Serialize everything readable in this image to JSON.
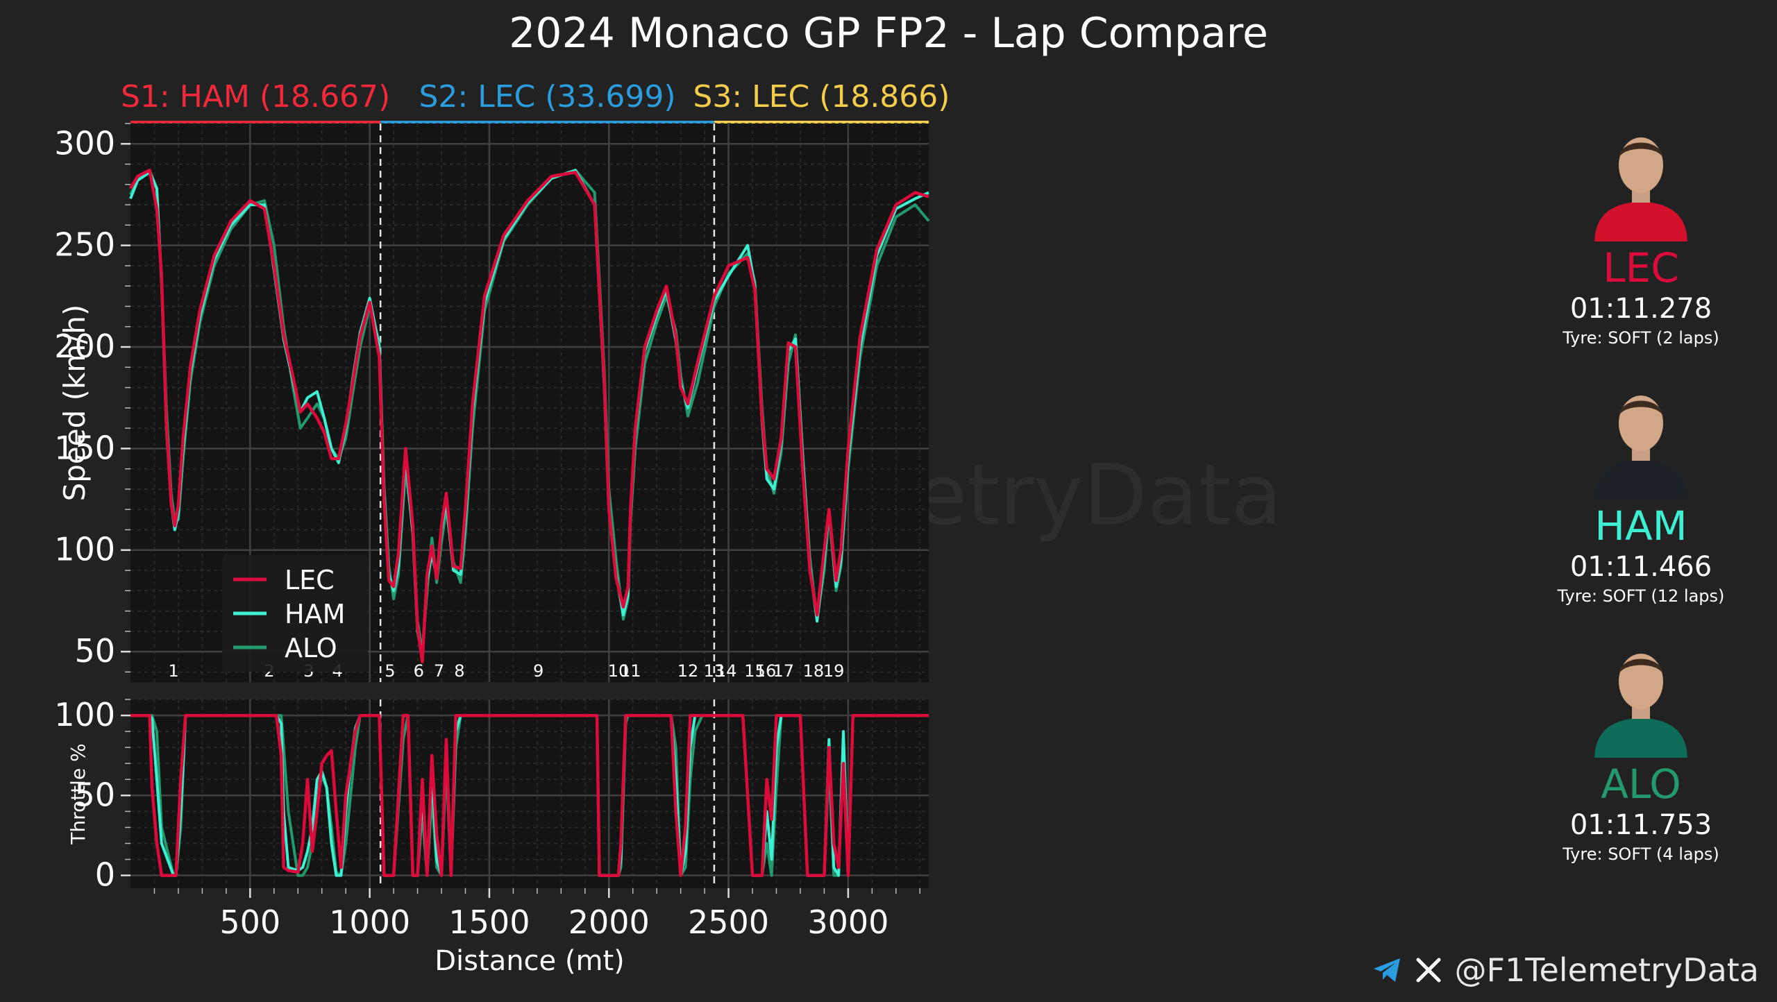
{
  "title": "2024 Monaco GP FP2 - Lap Compare",
  "watermark": "@F1TelemetryData",
  "sectors": [
    {
      "label": "S1: HAM (18.667)",
      "color": "#f2293a",
      "start": 0,
      "end": 1045
    },
    {
      "label": "S2: LEC (33.699)",
      "color": "#2a9ddf",
      "start": 1045,
      "end": 2440
    },
    {
      "label": "S3: LEC (18.866)",
      "color": "#f5cd4c",
      "start": 2440,
      "end": 3337
    }
  ],
  "drivers": [
    {
      "code": "LEC",
      "color": "#dc0b3c",
      "lap_time": "01:11.278",
      "tyre": "Tyre: SOFT (2 laps)",
      "avatar_icon": "driver-avatar-ferrari",
      "suit_color": "#d2102b"
    },
    {
      "code": "HAM",
      "color": "#3ef0d2",
      "lap_time": "01:11.466",
      "tyre": "Tyre: SOFT (12 laps)",
      "avatar_icon": "driver-avatar-mercedes",
      "suit_color": "#1c2227"
    },
    {
      "code": "ALO",
      "color": "#239a6e",
      "lap_time": "01:11.753",
      "tyre": "Tyre: SOFT (4 laps)",
      "avatar_icon": "driver-avatar-aston-martin",
      "suit_color": "#0e6b57"
    }
  ],
  "footer": {
    "handle": "@F1TelemetryData",
    "icons": [
      "telegram-icon",
      "x-icon"
    ]
  },
  "chart_data": [
    {
      "type": "line",
      "ylabel": "Speed (km/h)",
      "xlim": [
        0,
        3337
      ],
      "ylim": [
        35,
        310
      ],
      "yticks": [
        50,
        100,
        150,
        200,
        250,
        300
      ],
      "grid": true,
      "legend": "lower-left",
      "corners": [
        {
          "label": "1",
          "x": 180
        },
        {
          "label": "2",
          "x": 580
        },
        {
          "label": "3",
          "x": 745
        },
        {
          "label": "4",
          "x": 865
        },
        {
          "label": "5",
          "x": 1085
        },
        {
          "label": "6",
          "x": 1205
        },
        {
          "label": "7",
          "x": 1290
        },
        {
          "label": "8",
          "x": 1375
        },
        {
          "label": "9",
          "x": 1705
        },
        {
          "label": "10",
          "x": 2040
        },
        {
          "label": "11",
          "x": 2090
        },
        {
          "label": "12",
          "x": 2330
        },
        {
          "label": "13",
          "x": 2440
        },
        {
          "label": "14",
          "x": 2490
        },
        {
          "label": "15",
          "x": 2610
        },
        {
          "label": "16",
          "x": 2655
        },
        {
          "label": "17",
          "x": 2730
        },
        {
          "label": "18",
          "x": 2855
        },
        {
          "label": "19",
          "x": 2940
        }
      ],
      "x": [
        0,
        30,
        80,
        110,
        130,
        150,
        170,
        185,
        200,
        220,
        250,
        290,
        350,
        420,
        500,
        560,
        600,
        640,
        680,
        710,
        740,
        780,
        810,
        840,
        870,
        900,
        930,
        960,
        1000,
        1040,
        1060,
        1080,
        1100,
        1120,
        1150,
        1180,
        1200,
        1220,
        1240,
        1260,
        1280,
        1300,
        1320,
        1350,
        1380,
        1400,
        1430,
        1480,
        1560,
        1660,
        1760,
        1860,
        1940,
        1980,
        2000,
        2030,
        2060,
        2080,
        2090,
        2110,
        2150,
        2200,
        2240,
        2280,
        2300,
        2330,
        2370,
        2440,
        2500,
        2580,
        2610,
        2640,
        2660,
        2690,
        2720,
        2750,
        2780,
        2810,
        2840,
        2870,
        2900,
        2920,
        2950,
        2970,
        3000,
        3050,
        3120,
        3200,
        3280,
        3337
      ],
      "series": [
        {
          "name": "LEC",
          "color": "#dc0b3c",
          "values": [
            278,
            284,
            287,
            268,
            235,
            162,
            123,
            112,
            122,
            155,
            190,
            218,
            245,
            262,
            272,
            268,
            240,
            206,
            185,
            168,
            172,
            165,
            158,
            145,
            145,
            162,
            183,
            205,
            222,
            195,
            125,
            85,
            82,
            98,
            150,
            112,
            62,
            45,
            88,
            102,
            86,
            112,
            128,
            92,
            91,
            120,
            172,
            225,
            255,
            272,
            284,
            286,
            270,
            185,
            120,
            86,
            72,
            82,
            120,
            160,
            200,
            218,
            230,
            205,
            180,
            172,
            192,
            225,
            240,
            244,
            228,
            165,
            140,
            135,
            155,
            202,
            200,
            140,
            90,
            68,
            100,
            120,
            85,
            100,
            150,
            205,
            248,
            270,
            276,
            274
          ]
        },
        {
          "name": "HAM",
          "color": "#3ef0d2",
          "values": [
            273,
            282,
            286,
            278,
            232,
            160,
            123,
            110,
            118,
            150,
            187,
            215,
            243,
            260,
            270,
            270,
            238,
            204,
            183,
            168,
            175,
            178,
            165,
            150,
            143,
            160,
            185,
            207,
            224,
            200,
            128,
            88,
            80,
            92,
            146,
            108,
            60,
            48,
            85,
            98,
            87,
            110,
            124,
            90,
            88,
            115,
            168,
            222,
            253,
            271,
            283,
            287,
            270,
            182,
            120,
            88,
            68,
            78,
            120,
            158,
            198,
            216,
            228,
            203,
            182,
            170,
            190,
            223,
            235,
            250,
            230,
            163,
            135,
            130,
            153,
            198,
            204,
            145,
            92,
            65,
            96,
            120,
            82,
            95,
            145,
            200,
            245,
            268,
            273,
            276
          ]
        },
        {
          "name": "ALO",
          "color": "#239a6e",
          "values": [
            275,
            283,
            287,
            278,
            232,
            170,
            128,
            114,
            115,
            145,
            183,
            212,
            240,
            258,
            270,
            272,
            250,
            210,
            180,
            160,
            165,
            172,
            165,
            150,
            145,
            155,
            178,
            200,
            220,
            202,
            132,
            92,
            76,
            88,
            140,
            110,
            65,
            50,
            80,
            106,
            84,
            104,
            120,
            94,
            84,
            108,
            160,
            218,
            252,
            270,
            283,
            287,
            276,
            190,
            130,
            95,
            66,
            76,
            114,
            150,
            192,
            212,
            225,
            208,
            186,
            166,
            182,
            220,
            236,
            246,
            232,
            170,
            140,
            128,
            148,
            192,
            206,
            148,
            96,
            66,
            90,
            118,
            80,
            92,
            140,
            195,
            240,
            264,
            270,
            262
          ]
        }
      ]
    },
    {
      "type": "line",
      "ylabel": "Throttle %",
      "xlim": [
        0,
        3337
      ],
      "ylim": [
        -8,
        110
      ],
      "yticks": [
        0,
        50,
        100
      ],
      "xlabel": "Distance (mt)",
      "xticks": [
        500,
        1000,
        1500,
        2000,
        2500,
        3000
      ],
      "grid": true,
      "x": [
        0,
        80,
        90,
        110,
        130,
        180,
        190,
        210,
        230,
        610,
        630,
        640,
        660,
        700,
        720,
        740,
        760,
        780,
        800,
        820,
        840,
        860,
        880,
        900,
        920,
        940,
        960,
        1000,
        1040,
        1060,
        1100,
        1140,
        1160,
        1180,
        1200,
        1220,
        1240,
        1260,
        1280,
        1300,
        1320,
        1340,
        1360,
        1380,
        1420,
        1440,
        1950,
        1960,
        1980,
        2040,
        2050,
        2070,
        2080,
        2120,
        2260,
        2280,
        2300,
        2320,
        2340,
        2360,
        2390,
        2440,
        2560,
        2600,
        2640,
        2660,
        2680,
        2700,
        2720,
        2740,
        2760,
        2800,
        2830,
        2870,
        2900,
        2920,
        2940,
        2960,
        2980,
        3000,
        3020,
        3040,
        3337
      ],
      "series": [
        {
          "name": "LEC",
          "color": "#dc0b3c",
          "values": [
            100,
            100,
            55,
            20,
            0,
            0,
            0,
            60,
            100,
            100,
            75,
            5,
            3,
            2,
            20,
            60,
            15,
            40,
            70,
            75,
            78,
            40,
            5,
            50,
            70,
            90,
            100,
            100,
            100,
            0,
            0,
            100,
            100,
            0,
            0,
            60,
            0,
            75,
            25,
            0,
            85,
            0,
            100,
            100,
            100,
            100,
            100,
            0,
            0,
            0,
            20,
            100,
            100,
            100,
            100,
            40,
            0,
            30,
            100,
            100,
            100,
            100,
            100,
            0,
            0,
            60,
            35,
            100,
            100,
            100,
            100,
            100,
            0,
            0,
            0,
            80,
            20,
            5,
            70,
            0,
            100,
            100,
            100
          ]
        },
        {
          "name": "HAM",
          "color": "#3ef0d2",
          "values": [
            100,
            100,
            98,
            60,
            20,
            0,
            0,
            40,
            100,
            100,
            95,
            40,
            5,
            3,
            5,
            15,
            30,
            60,
            65,
            55,
            20,
            0,
            0,
            40,
            70,
            92,
            100,
            100,
            100,
            0,
            0,
            100,
            100,
            0,
            0,
            50,
            0,
            65,
            10,
            0,
            80,
            0,
            90,
            100,
            100,
            100,
            100,
            0,
            0,
            0,
            10,
            100,
            100,
            100,
            100,
            60,
            0,
            15,
            80,
            100,
            100,
            100,
            100,
            0,
            0,
            40,
            10,
            80,
            100,
            100,
            100,
            100,
            0,
            0,
            0,
            85,
            5,
            0,
            90,
            0,
            100,
            100,
            100
          ]
        },
        {
          "name": "ALO",
          "color": "#239a6e",
          "values": [
            100,
            100,
            100,
            90,
            30,
            0,
            0,
            30,
            100,
            100,
            100,
            80,
            40,
            0,
            0,
            5,
            20,
            50,
            62,
            55,
            30,
            2,
            0,
            20,
            50,
            80,
            100,
            100,
            100,
            0,
            0,
            85,
            100,
            0,
            0,
            40,
            0,
            50,
            5,
            0,
            70,
            0,
            80,
            100,
            100,
            100,
            100,
            0,
            0,
            0,
            5,
            95,
            100,
            100,
            100,
            80,
            0,
            5,
            60,
            90,
            100,
            100,
            100,
            0,
            0,
            20,
            0,
            55,
            100,
            100,
            100,
            100,
            0,
            0,
            0,
            70,
            0,
            0,
            85,
            0,
            100,
            100,
            100
          ]
        }
      ]
    }
  ]
}
